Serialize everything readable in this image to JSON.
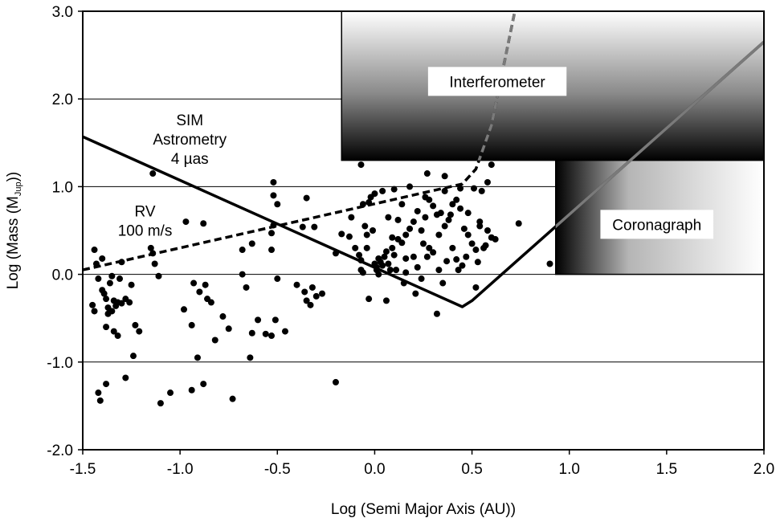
{
  "chart_data": {
    "type": "scatter",
    "xlabel": "Log (Semi Major Axis (AU))",
    "ylabel_main": "Log (Mass (M",
    "ylabel_sub": "Jup",
    "ylabel_end": "))",
    "xlim": [
      -1.5,
      2.0
    ],
    "ylim": [
      -2.0,
      3.0
    ],
    "xticks": [
      -1.5,
      -1.0,
      -0.5,
      0.0,
      0.5,
      1.0,
      1.5,
      2.0
    ],
    "xtick_labels": [
      "-1.5",
      "-1.0",
      "-0.5",
      "0.0",
      "0.5",
      "1.0",
      "1.5",
      "2.0"
    ],
    "yticks": [
      -2.0,
      -1.0,
      0.0,
      1.0,
      2.0,
      3.0
    ],
    "ytick_labels": [
      "-2.0",
      "-1.0",
      "0.0",
      "1.0",
      "2.0",
      "3.0"
    ],
    "grid": "horizontal",
    "regions": [
      {
        "label": "Interferometer",
        "x": [
          -0.17,
          2.0
        ],
        "y": [
          1.3,
          3.0
        ],
        "gradient": "white-top-to-black-bottom"
      },
      {
        "label": "Coronagraph",
        "x": [
          0.93,
          2.0
        ],
        "y": [
          0.0,
          1.3
        ],
        "gradient": "black-left-to-white-right"
      }
    ],
    "lines": [
      {
        "name": "SIM Astrometry 4 µas",
        "style": "solid",
        "color": "#000000",
        "points": [
          [
            -1.5,
            1.57
          ],
          [
            0.45,
            -0.37
          ],
          [
            0.5,
            -0.3
          ],
          [
            2.0,
            2.65
          ]
        ]
      },
      {
        "name": "RV 100 m/s",
        "style": "dashed",
        "color": "#000000",
        "points": [
          [
            -1.5,
            0.05
          ],
          [
            0.45,
            1.03
          ],
          [
            0.52,
            1.2
          ],
          [
            0.6,
            1.7
          ],
          [
            0.72,
            3.0
          ]
        ]
      }
    ],
    "annotations": [
      {
        "text": "Interferometer",
        "x": 0.63,
        "y": 2.2
      },
      {
        "text": "Coronagraph",
        "x": 1.45,
        "y": 0.57
      },
      {
        "lines": [
          "SIM",
          "Astrometry",
          "4 µas"
        ],
        "x": -0.95,
        "y": 1.7
      },
      {
        "lines": [
          "RV",
          "100 m/s"
        ],
        "x": -1.18,
        "y": 0.66
      }
    ],
    "points": [
      [
        -1.44,
        0.28
      ],
      [
        -1.43,
        0.12
      ],
      [
        -1.4,
        0.18
      ],
      [
        -1.45,
        -0.35
      ],
      [
        -1.44,
        -0.42
      ],
      [
        -1.42,
        -0.05
      ],
      [
        -1.4,
        -0.18
      ],
      [
        -1.38,
        -0.28
      ],
      [
        -1.37,
        -0.38
      ],
      [
        -1.39,
        -0.22
      ],
      [
        -1.36,
        -0.1
      ],
      [
        -1.35,
        -0.02
      ],
      [
        -1.34,
        -0.3
      ],
      [
        -1.33,
        -0.36
      ],
      [
        -1.32,
        -0.32
      ],
      [
        -1.35,
        -0.42
      ],
      [
        -1.37,
        -0.45
      ],
      [
        -1.31,
        -0.05
      ],
      [
        -1.3,
        -0.33
      ],
      [
        -1.28,
        -0.28
      ],
      [
        -1.26,
        -0.32
      ],
      [
        -1.25,
        -0.12
      ],
      [
        -1.23,
        -0.58
      ],
      [
        -1.21,
        -0.65
      ],
      [
        -1.34,
        -0.65
      ],
      [
        -1.32,
        -0.7
      ],
      [
        -1.38,
        -0.6
      ],
      [
        -1.42,
        -1.35
      ],
      [
        -1.41,
        -1.44
      ],
      [
        -1.38,
        -1.25
      ],
      [
        -1.28,
        -1.18
      ],
      [
        -1.24,
        -0.93
      ],
      [
        -1.3,
        0.14
      ],
      [
        -1.15,
        0.3
      ],
      [
        -1.14,
        0.24
      ],
      [
        -1.13,
        0.12
      ],
      [
        -1.11,
        -0.02
      ],
      [
        -1.1,
        -1.47
      ],
      [
        -1.05,
        -1.35
      ],
      [
        -1.14,
        1.15
      ],
      [
        -0.97,
        0.6
      ],
      [
        -0.88,
        0.58
      ],
      [
        -0.93,
        -0.1
      ],
      [
        -0.9,
        -0.2
      ],
      [
        -0.87,
        -0.12
      ],
      [
        -0.86,
        -0.28
      ],
      [
        -0.84,
        -0.32
      ],
      [
        -0.98,
        -0.4
      ],
      [
        -0.94,
        -0.58
      ],
      [
        -0.91,
        -0.95
      ],
      [
        -0.94,
        -1.32
      ],
      [
        -0.88,
        -1.25
      ],
      [
        -0.73,
        -1.42
      ],
      [
        -0.82,
        -0.75
      ],
      [
        -0.78,
        -0.48
      ],
      [
        -0.75,
        -0.62
      ],
      [
        -0.63,
        -0.67
      ],
      [
        -0.6,
        -0.52
      ],
      [
        -0.56,
        -0.68
      ],
      [
        -0.53,
        -0.7
      ],
      [
        -0.68,
        0.28
      ],
      [
        -0.63,
        0.35
      ],
      [
        -0.53,
        0.47
      ],
      [
        -0.52,
        0.56
      ],
      [
        -0.5,
        0.8
      ],
      [
        -0.52,
        0.9
      ],
      [
        -0.52,
        1.05
      ],
      [
        -0.53,
        0.28
      ],
      [
        -0.5,
        -0.05
      ],
      [
        -0.46,
        -0.65
      ],
      [
        -0.51,
        -0.52
      ],
      [
        -0.66,
        -0.15
      ],
      [
        -0.68,
        0.0
      ],
      [
        -0.64,
        -0.95
      ],
      [
        -0.4,
        -0.12
      ],
      [
        -0.36,
        -0.2
      ],
      [
        -0.35,
        -0.3
      ],
      [
        -0.33,
        -0.35
      ],
      [
        -0.32,
        -0.15
      ],
      [
        -0.3,
        -0.25
      ],
      [
        -0.27,
        -0.22
      ],
      [
        -0.35,
        0.87
      ],
      [
        -0.37,
        0.54
      ],
      [
        -0.31,
        0.54
      ],
      [
        -0.2,
        -1.23
      ],
      [
        -0.2,
        0.24
      ],
      [
        -0.17,
        0.46
      ],
      [
        -0.13,
        0.43
      ],
      [
        -0.1,
        0.3
      ],
      [
        -0.08,
        0.22
      ],
      [
        -0.07,
        0.16
      ],
      [
        -0.05,
        0.55
      ],
      [
        -0.04,
        0.45
      ],
      [
        -0.06,
        0.8
      ],
      [
        -0.03,
        0.82
      ],
      [
        -0.02,
        0.88
      ],
      [
        0.0,
        0.92
      ],
      [
        -0.07,
        1.25
      ],
      [
        -0.04,
        0.3
      ],
      [
        0.0,
        0.12
      ],
      [
        0.01,
        0.08
      ],
      [
        0.02,
        0.18
      ],
      [
        0.03,
        0.14
      ],
      [
        0.04,
        0.1
      ],
      [
        0.05,
        0.2
      ],
      [
        0.06,
        0.26
      ],
      [
        0.07,
        0.12
      ],
      [
        0.08,
        0.05
      ],
      [
        0.09,
        0.3
      ],
      [
        0.1,
        0.22
      ],
      [
        0.12,
        0.4
      ],
      [
        0.14,
        0.36
      ],
      [
        0.16,
        0.45
      ],
      [
        0.18,
        0.52
      ],
      [
        0.2,
        0.6
      ],
      [
        0.22,
        0.72
      ],
      [
        0.24,
        0.5
      ],
      [
        0.26,
        0.65
      ],
      [
        0.28,
        0.3
      ],
      [
        0.3,
        0.25
      ],
      [
        0.32,
        0.68
      ],
      [
        0.34,
        0.7
      ],
      [
        0.36,
        0.55
      ],
      [
        0.38,
        0.62
      ],
      [
        0.4,
        0.8
      ],
      [
        0.42,
        0.85
      ],
      [
        0.44,
        0.75
      ],
      [
        0.46,
        0.52
      ],
      [
        0.48,
        0.45
      ],
      [
        0.5,
        0.35
      ],
      [
        0.52,
        0.28
      ],
      [
        0.54,
        0.55
      ],
      [
        0.56,
        0.3
      ],
      [
        0.58,
        0.5
      ],
      [
        0.6,
        0.42
      ],
      [
        0.62,
        0.4
      ],
      [
        0.04,
        0.95
      ],
      [
        0.1,
        0.97
      ],
      [
        0.18,
        1.0
      ],
      [
        0.26,
        0.88
      ],
      [
        0.27,
        1.15
      ],
      [
        0.36,
        1.12
      ],
      [
        0.44,
        0.98
      ],
      [
        0.51,
        0.98
      ],
      [
        0.55,
        0.95
      ],
      [
        0.58,
        1.05
      ],
      [
        0.6,
        1.25
      ],
      [
        0.74,
        0.58
      ],
      [
        0.9,
        0.12
      ],
      [
        0.12,
        0.62
      ],
      [
        0.2,
        0.2
      ],
      [
        0.28,
        0.85
      ],
      [
        0.32,
        -0.45
      ],
      [
        0.35,
        -0.1
      ],
      [
        0.33,
        0.05
      ],
      [
        0.37,
        0.15
      ],
      [
        0.42,
        0.17
      ],
      [
        0.47,
        0.2
      ],
      [
        0.24,
        -0.05
      ],
      [
        0.21,
        -0.22
      ],
      [
        0.22,
        0.08
      ],
      [
        0.15,
        -0.1
      ],
      [
        0.02,
        0.0
      ],
      [
        -0.06,
        0.02
      ],
      [
        -0.03,
        -0.28
      ],
      [
        0.06,
        -0.3
      ],
      [
        0.16,
        0.02
      ],
      [
        0.4,
        0.3
      ],
      [
        0.45,
        0.1
      ],
      [
        0.54,
        0.6
      ],
      [
        0.57,
        0.33
      ],
      [
        0.33,
        0.45
      ],
      [
        0.25,
        0.35
      ],
      [
        0.11,
        0.05
      ],
      [
        -0.12,
        0.65
      ],
      [
        -0.01,
        0.5
      ],
      [
        0.07,
        0.65
      ],
      [
        0.3,
        0.78
      ],
      [
        0.39,
        0.68
      ],
      [
        0.14,
        0.8
      ],
      [
        0.01,
        0.05
      ],
      [
        -0.07,
        0.05
      ],
      [
        0.27,
        0.2
      ],
      [
        0.36,
        0.95
      ],
      [
        0.48,
        0.7
      ],
      [
        0.52,
        -0.15
      ],
      [
        0.53,
        0.14
      ],
      [
        0.09,
        0.42
      ],
      [
        0.16,
        0.18
      ],
      [
        0.43,
        0.05
      ]
    ]
  }
}
